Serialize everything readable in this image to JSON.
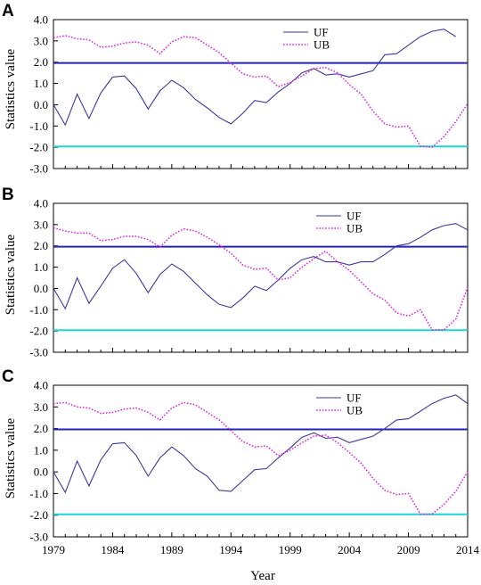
{
  "figure": {
    "xlabel": "Year",
    "ylabel": "Statistics value",
    "x_ticks": [
      "1979",
      "1984",
      "1989",
      "1994",
      "1999",
      "2004",
      "2009",
      "2014"
    ],
    "y_ticks": [
      "4.0",
      "3.0",
      "2.0",
      "1.0",
      "0.0",
      "-1.0",
      "-2.0",
      "-3.0"
    ]
  },
  "chart_data": [
    {
      "type": "line",
      "panel": "A",
      "xlim": [
        1979,
        2014
      ],
      "ylim": [
        -3,
        4
      ],
      "legend": "top-right",
      "reference_lines": [
        {
          "y": 1.96,
          "color": "#2323b4"
        },
        {
          "y": -1.96,
          "color": "#1fd6d6"
        }
      ],
      "x": [
        1979,
        1980,
        1981,
        1982,
        1983,
        1984,
        1985,
        1986,
        1987,
        1988,
        1989,
        1990,
        1991,
        1992,
        1993,
        1994,
        1995,
        1996,
        1997,
        1998,
        1999,
        2000,
        2001,
        2002,
        2003,
        2004,
        2005,
        2006,
        2007,
        2008,
        2009,
        2010,
        2011,
        2012,
        2013,
        2014
      ],
      "series": [
        {
          "name": "UF",
          "color": "#3a3aa0",
          "style": "solid",
          "values": [
            0.0,
            -0.95,
            0.5,
            -0.65,
            0.55,
            1.3,
            1.35,
            0.75,
            -0.2,
            0.65,
            1.15,
            0.8,
            0.25,
            -0.15,
            -0.6,
            -0.9,
            -0.4,
            0.2,
            0.1,
            0.6,
            1.0,
            1.5,
            1.7,
            1.4,
            1.45,
            1.3,
            1.45,
            1.6,
            2.35,
            2.4,
            2.8,
            3.2,
            3.45,
            3.55,
            3.2,
            null
          ]
        },
        {
          "name": "UB",
          "color": "#e020e0",
          "style": "dotted",
          "values": [
            3.15,
            3.25,
            3.1,
            3.05,
            2.7,
            2.75,
            2.9,
            2.95,
            2.8,
            2.4,
            2.95,
            3.2,
            3.15,
            2.8,
            2.45,
            1.95,
            1.45,
            1.3,
            1.35,
            0.85,
            1.05,
            1.35,
            1.7,
            1.75,
            1.5,
            0.95,
            0.5,
            -0.3,
            -0.9,
            -1.05,
            -1.0,
            -1.95,
            -2.0,
            -1.5,
            -0.8,
            0.05
          ]
        }
      ]
    },
    {
      "type": "line",
      "panel": "B",
      "xlim": [
        1979,
        2014
      ],
      "ylim": [
        -3,
        4
      ],
      "legend": "top-right",
      "reference_lines": [
        {
          "y": 1.96,
          "color": "#2323b4"
        },
        {
          "y": -1.96,
          "color": "#1fd6d6"
        }
      ],
      "x": [
        1979,
        1980,
        1981,
        1982,
        1983,
        1984,
        1985,
        1986,
        1987,
        1988,
        1989,
        1990,
        1991,
        1992,
        1993,
        1994,
        1995,
        1996,
        1997,
        1998,
        1999,
        2000,
        2001,
        2002,
        2003,
        2004,
        2005,
        2006,
        2007,
        2008,
        2009,
        2010,
        2011,
        2012,
        2013,
        2014
      ],
      "series": [
        {
          "name": "UF",
          "color": "#3a3aa0",
          "style": "solid",
          "values": [
            0.0,
            -0.95,
            0.5,
            -0.7,
            0.1,
            0.95,
            1.35,
            0.7,
            -0.2,
            0.65,
            1.15,
            0.8,
            0.25,
            -0.3,
            -0.75,
            -0.9,
            -0.45,
            0.1,
            -0.1,
            0.4,
            0.95,
            1.35,
            1.5,
            1.25,
            1.25,
            1.1,
            1.25,
            1.25,
            1.6,
            2.0,
            2.1,
            2.4,
            2.75,
            2.95,
            3.05,
            2.75
          ]
        },
        {
          "name": "UB",
          "color": "#e020e0",
          "style": "dotted",
          "values": [
            2.85,
            2.7,
            2.6,
            2.6,
            2.25,
            2.3,
            2.45,
            2.45,
            2.3,
            1.95,
            2.5,
            2.8,
            2.7,
            2.4,
            2.05,
            1.65,
            1.1,
            0.9,
            0.95,
            0.4,
            0.5,
            1.0,
            1.4,
            1.75,
            1.25,
            0.85,
            0.3,
            -0.25,
            -0.55,
            -1.15,
            -1.3,
            -1.0,
            -1.95,
            -1.95,
            -1.45,
            0.05
          ]
        }
      ]
    },
    {
      "type": "line",
      "panel": "C",
      "xlim": [
        1979,
        2014
      ],
      "ylim": [
        -3,
        4
      ],
      "legend": "top-right",
      "reference_lines": [
        {
          "y": 1.96,
          "color": "#2323b4"
        },
        {
          "y": -1.96,
          "color": "#1fd6d6"
        }
      ],
      "x": [
        1979,
        1980,
        1981,
        1982,
        1983,
        1984,
        1985,
        1986,
        1987,
        1988,
        1989,
        1990,
        1991,
        1992,
        1993,
        1994,
        1995,
        1996,
        1997,
        1998,
        1999,
        2000,
        2001,
        2002,
        2003,
        2004,
        2005,
        2006,
        2007,
        2008,
        2009,
        2010,
        2011,
        2012,
        2013,
        2014
      ],
      "series": [
        {
          "name": "UF",
          "color": "#3a3aa0",
          "style": "solid",
          "values": [
            0.0,
            -0.95,
            0.5,
            -0.65,
            0.55,
            1.3,
            1.35,
            0.75,
            -0.2,
            0.65,
            1.15,
            0.75,
            0.15,
            -0.2,
            -0.85,
            -0.9,
            -0.4,
            0.1,
            0.15,
            0.65,
            1.1,
            1.6,
            1.8,
            1.55,
            1.6,
            1.35,
            1.5,
            1.65,
            2.0,
            2.4,
            2.45,
            2.8,
            3.15,
            3.4,
            3.55,
            3.15
          ]
        },
        {
          "name": "UB",
          "color": "#e020e0",
          "style": "dotted",
          "values": [
            3.15,
            3.2,
            3.0,
            2.95,
            2.7,
            2.75,
            2.9,
            2.95,
            2.75,
            2.4,
            2.95,
            3.2,
            3.1,
            2.75,
            2.4,
            1.9,
            1.4,
            1.15,
            1.2,
            0.75,
            1.0,
            1.35,
            1.65,
            1.7,
            1.35,
            0.9,
            0.4,
            -0.3,
            -0.85,
            -1.05,
            -1.0,
            -1.95,
            -1.95,
            -1.5,
            -0.9,
            0.0
          ]
        }
      ]
    }
  ]
}
